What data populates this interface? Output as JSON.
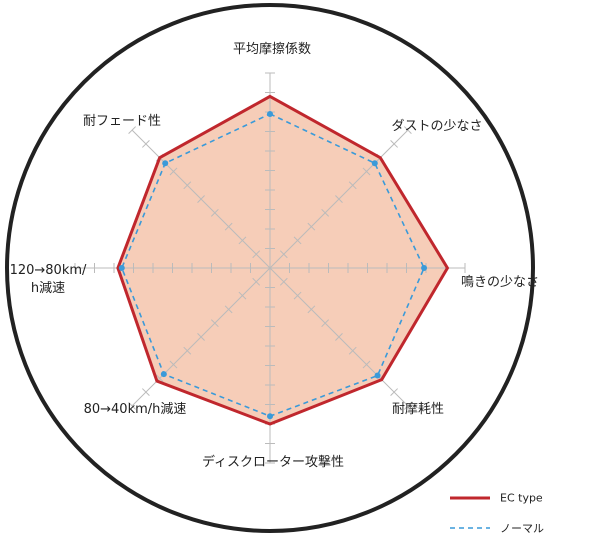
{
  "chart_data": {
    "type": "radar",
    "categories": [
      "平均摩擦係数",
      "ダストの少なさ",
      "鳴きの少なさ",
      "耐摩耗性",
      "ディスクローター攻撃性",
      "80→40km/h減速",
      "120→80km/h減速",
      "耐フェード性"
    ],
    "rlim": [
      0,
      10
    ],
    "rticks": [
      1,
      2,
      3,
      4,
      5,
      6,
      7,
      8,
      9,
      10
    ],
    "series": [
      {
        "name": "EC type",
        "color": "#c0272d",
        "fill": "#f6cdb8",
        "values": [
          8.8,
          8.0,
          9.1,
          8.1,
          8.0,
          8.2,
          7.8,
          8.0
        ]
      },
      {
        "name": "ノーマル",
        "color": "#3a9ad9",
        "values": [
          7.9,
          7.6,
          7.9,
          7.8,
          7.6,
          7.7,
          7.6,
          7.6
        ]
      }
    ]
  }
}
